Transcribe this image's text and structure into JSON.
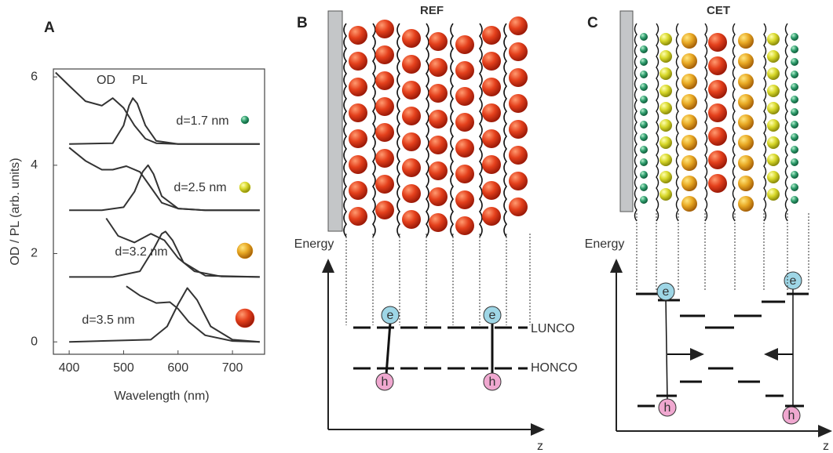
{
  "chart_data": {
    "type": "line",
    "panel_label": "A",
    "x_label": "Wavelength (nm)",
    "y_label": "OD / PL (arb. units)",
    "annotations": [
      "OD",
      "PL"
    ],
    "xlim": [
      371,
      759
    ],
    "ylim": [
      -0.28,
      6.18
    ],
    "xticks": [
      400,
      500,
      600,
      700
    ],
    "yticks": [
      0,
      2,
      4,
      6
    ],
    "series": [
      {
        "name": "d=1.7 nm",
        "color": "#2e9e6e",
        "x": [
          375,
          400,
          430,
          460,
          480,
          500,
          520,
          540,
          560,
          600,
          700,
          750
        ],
        "values": [
          6.1,
          5.8,
          5.45,
          5.35,
          5.52,
          5.3,
          4.9,
          4.6,
          4.5,
          4.48,
          4.48,
          4.48
        ],
        "pl_x": [
          400,
          480,
          500,
          510,
          517,
          525,
          540,
          560,
          600,
          750
        ],
        "pl_values": [
          4.48,
          4.5,
          4.9,
          5.35,
          5.52,
          5.4,
          4.9,
          4.55,
          4.48,
          4.48
        ]
      },
      {
        "name": "d=2.5 nm",
        "color": "#d6d62a",
        "x": [
          400,
          430,
          460,
          480,
          505,
          530,
          550,
          570,
          600,
          650,
          750
        ],
        "values": [
          4.4,
          4.1,
          3.9,
          3.9,
          3.98,
          3.85,
          3.5,
          3.15,
          3.02,
          2.98,
          2.98
        ],
        "pl_x": [
          400,
          460,
          500,
          520,
          535,
          545,
          555,
          570,
          600,
          650,
          750
        ],
        "pl_values": [
          2.98,
          2.98,
          3.05,
          3.4,
          3.85,
          4.0,
          3.8,
          3.3,
          3.02,
          2.98,
          2.98
        ]
      },
      {
        "name": "d=3.2 nm",
        "color": "#e3a020",
        "x": [
          468,
          490,
          520,
          550,
          575,
          600,
          630,
          680,
          750
        ],
        "values": [
          2.8,
          2.4,
          2.25,
          2.45,
          2.3,
          1.9,
          1.6,
          1.48,
          1.47
        ],
        "pl_x": [
          400,
          480,
          530,
          555,
          570,
          577,
          590,
          610,
          650,
          750
        ],
        "pl_values": [
          1.47,
          1.47,
          1.6,
          2.1,
          2.45,
          2.5,
          2.3,
          1.8,
          1.5,
          1.47
        ]
      },
      {
        "name": "d=3.5 nm",
        "color": "#e0381a",
        "x": [
          505,
          530,
          560,
          585,
          600,
          620,
          650,
          700,
          750
        ],
        "values": [
          1.26,
          1.05,
          0.88,
          0.9,
          0.75,
          0.45,
          0.15,
          0.02,
          0
        ],
        "pl_x": [
          400,
          550,
          580,
          600,
          617,
          635,
          660,
          700,
          750
        ],
        "pl_values": [
          0,
          0.05,
          0.35,
          0.85,
          1.22,
          0.95,
          0.35,
          0.05,
          0
        ]
      }
    ]
  },
  "diagram_B": {
    "label": "B",
    "title": "REF",
    "axis_y": "Energy",
    "axis_x": "z",
    "levels": [
      "LUNCO",
      "HONCO"
    ],
    "electron": "e",
    "hole": "h"
  },
  "diagram_C": {
    "label": "C",
    "title": "CET",
    "axis_y": "Energy",
    "axis_x": "z",
    "electron": "e",
    "hole": "h"
  }
}
